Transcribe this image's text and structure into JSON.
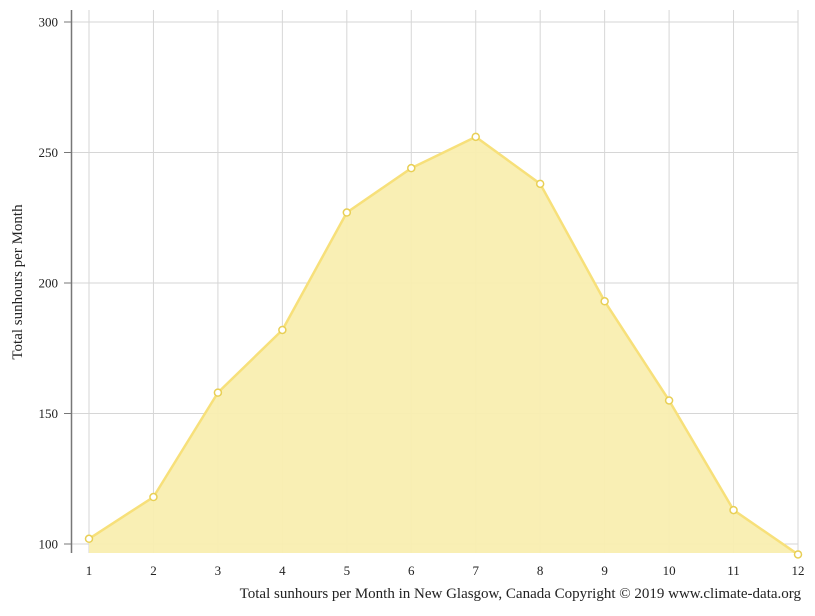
{
  "chart_data": {
    "type": "area",
    "x": [
      1,
      2,
      3,
      4,
      5,
      6,
      7,
      8,
      9,
      10,
      11,
      12
    ],
    "series": [
      {
        "values": [
          102,
          118,
          158,
          182,
          227,
          244,
          256,
          238,
          193,
          155,
          113,
          96
        ],
        "color": "#f7e07a",
        "fill": "#f9eeb0"
      }
    ],
    "xlim": [
      1,
      12
    ],
    "ylim": [
      96,
      304
    ],
    "yticks": [
      100,
      150,
      200,
      250,
      300
    ],
    "xticks": [
      1,
      2,
      3,
      4,
      5,
      6,
      7,
      8,
      9,
      10,
      11,
      12
    ],
    "ylabel": "Total sunhours per Month",
    "xlabel": "Total sunhours per Month in New Glasgow, Canada Copyright © 2019 www.climate-data.org",
    "grid": true,
    "colors": {
      "grid": "#d6d6d6",
      "axis": "#777777",
      "marker_stroke": "#e8cf55",
      "marker_fill": "#ffffff"
    }
  }
}
